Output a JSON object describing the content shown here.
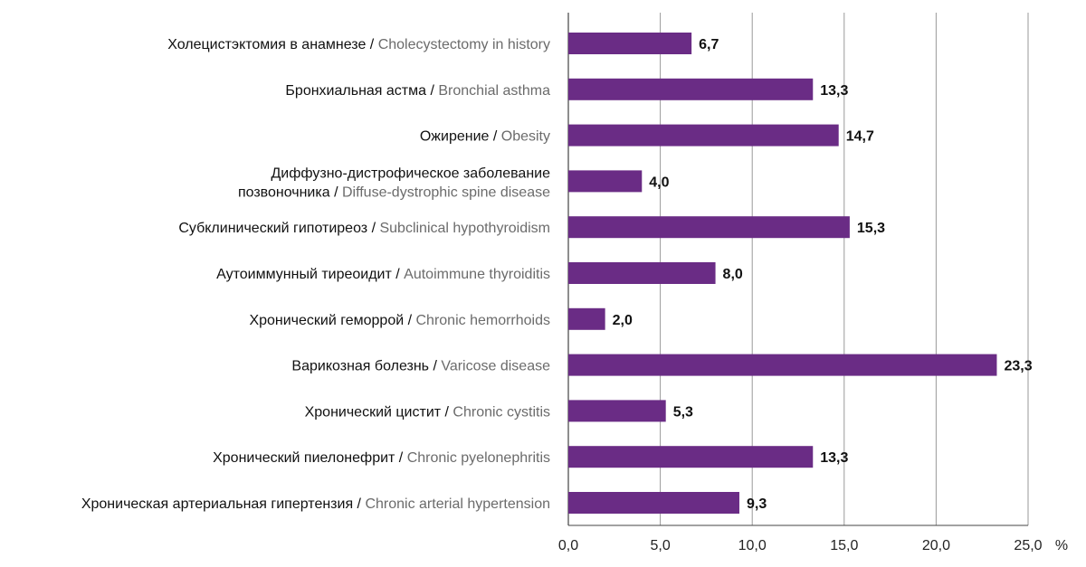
{
  "colors": {
    "bar": "#6a2c85",
    "grid": "#9a9a9a",
    "axis": "#444444",
    "text_ru": "#111111",
    "text_en": "#6b6b6b"
  },
  "chart_data": {
    "type": "bar",
    "orientation": "horizontal",
    "title": "",
    "xlabel": "%",
    "ylabel": "",
    "xlim": [
      0,
      25
    ],
    "xticks": [
      0,
      5,
      10,
      15,
      20,
      25
    ],
    "xtick_labels": [
      "0,0",
      "5,0",
      "10,0",
      "15,0",
      "20,0",
      "25,0"
    ],
    "grid": "vertical",
    "categories": [
      {
        "ru": "Холецистэктомия в анамнезе / ",
        "en": "Cholecystectomy in history"
      },
      {
        "ru": "Бронхиальная астма / ",
        "en": "Bronchial asthma"
      },
      {
        "ru": "Ожирение / ",
        "en": "Obesity"
      },
      {
        "ru": "Диффузно-дистрофическое заболевание",
        "ru2": "позвоночника / ",
        "en": "Diffuse-dystrophic spine disease"
      },
      {
        "ru": "Субклинический гипотиреоз / ",
        "en": "Subclinical hypothyroidism"
      },
      {
        "ru": "Аутоиммунный тиреоидит / ",
        "en": "Autoimmune thyroiditis"
      },
      {
        "ru": "Хронический геморрой / ",
        "en": "Chronic hemorrhoids"
      },
      {
        "ru": "Варикозная болезнь / ",
        "en": "Varicose disease"
      },
      {
        "ru": "Хронический цистит / ",
        "en": "Chronic cystitis"
      },
      {
        "ru": "Хронический пиелонефрит / ",
        "en": "Chronic pyelonephritis"
      },
      {
        "ru": "Хроническая артериальная гипертензия / ",
        "en": "Chronic arterial hypertension"
      }
    ],
    "values": [
      6.7,
      13.3,
      14.7,
      4.0,
      15.3,
      8.0,
      2.0,
      23.3,
      5.3,
      13.3,
      9.3
    ],
    "value_labels": [
      "6,7",
      "13,3",
      "14,7",
      "4,0",
      "15,3",
      "8,0",
      "2,0",
      "23,3",
      "5,3",
      "13,3",
      "9,3"
    ]
  }
}
